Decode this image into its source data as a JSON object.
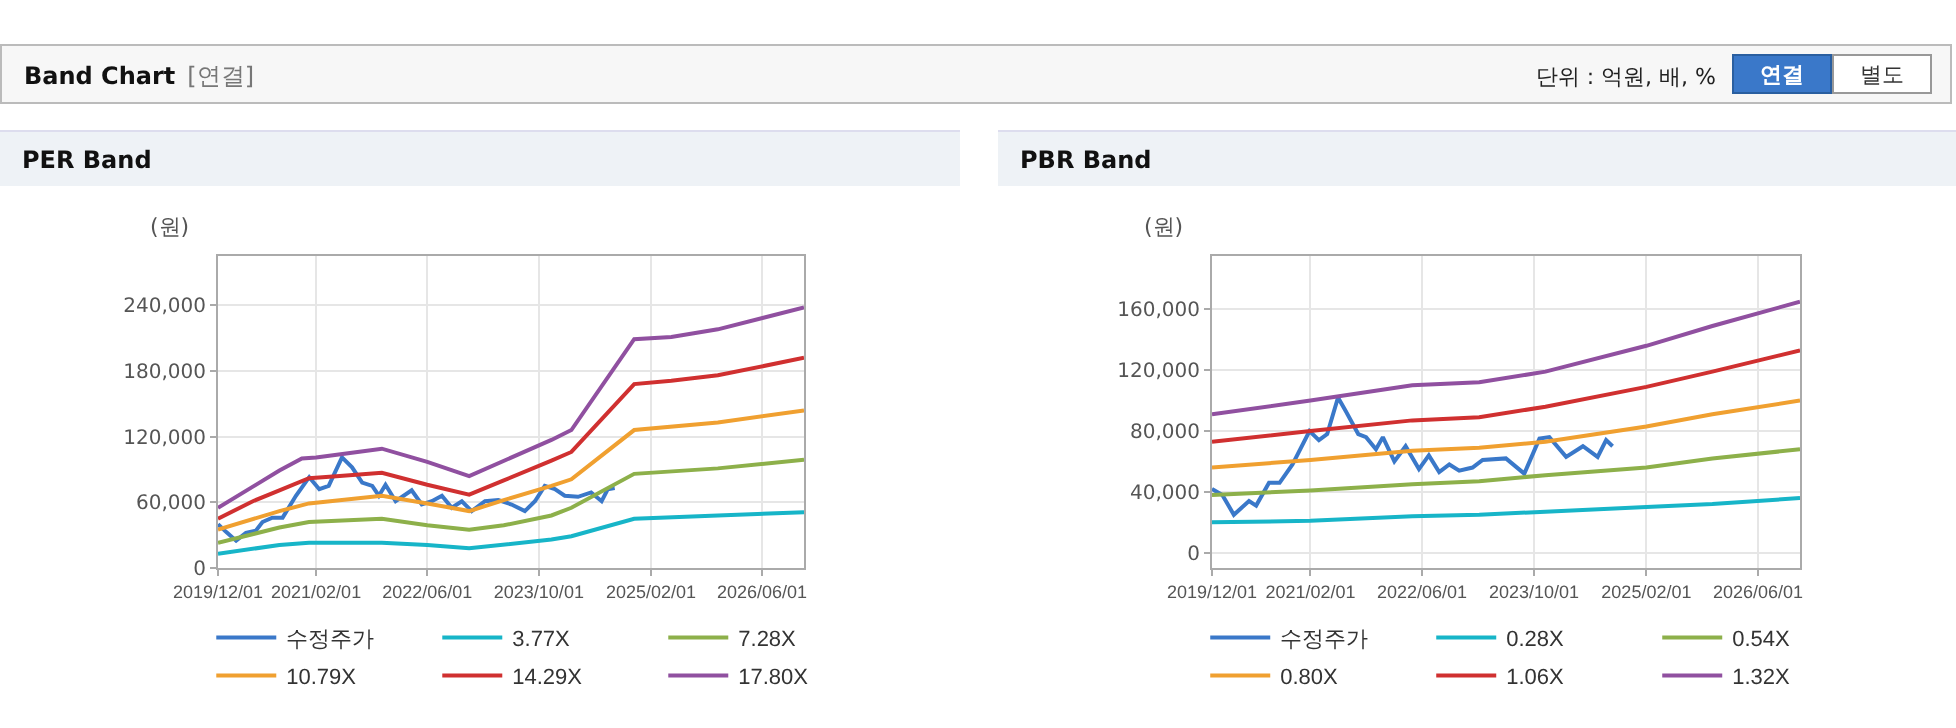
{
  "chart_data": [
    {
      "type": "line",
      "title": "PER Band",
      "ylabel": "(원)",
      "annotations": [
        "Band Chart",
        "[연결]",
        "단위 : 억원, 배, %",
        "연결",
        "별도"
      ],
      "xlim": [
        "2019-12-01",
        "2026-12-01"
      ],
      "xticks": [
        {
          "value": "2019-12-01",
          "label": "2019/12/01"
        },
        {
          "value": "2021-02-01",
          "label": "2021/02/01"
        },
        {
          "value": "2022-06-01",
          "label": "2022/06/01"
        },
        {
          "value": "2023-10-01",
          "label": "2023/10/01"
        },
        {
          "value": "2025-02-01",
          "label": "2025/02/01"
        },
        {
          "value": "2026-06-01",
          "label": "2026/06/01"
        }
      ],
      "ylim": [
        0,
        285000
      ],
      "yticks": [
        {
          "value": 0,
          "label": "0"
        },
        {
          "value": 60000,
          "label": "60,000"
        },
        {
          "value": 120000,
          "label": "120,000"
        },
        {
          "value": 180000,
          "label": "180,000"
        },
        {
          "value": 240000,
          "label": "240,000"
        }
      ],
      "grid": true,
      "legend": "bottom",
      "line_style": "solid",
      "marker": "none",
      "series": [
        {
          "name": "수정주가",
          "color": "#3a78c9",
          "x": [
            "2019-12-01",
            "2020-01-05",
            "2020-02-18",
            "2020-04-01",
            "2020-05-14",
            "2020-06-12",
            "2020-07-25",
            "2020-09-08",
            "2020-11-05",
            "2021-01-02",
            "2021-02-15",
            "2021-03-28",
            "2021-05-25",
            "2021-07-08",
            "2021-08-21",
            "2021-10-04",
            "2021-11-02",
            "2021-12-01",
            "2022-01-14",
            "2022-03-25",
            "2022-05-08",
            "2022-06-21",
            "2022-08-04",
            "2022-09-16",
            "2022-10-30",
            "2022-12-12",
            "2023-02-08",
            "2023-04-07",
            "2023-06-04",
            "2023-08-01",
            "2023-09-14",
            "2023-10-27",
            "2023-12-10",
            "2024-01-22",
            "2024-03-20",
            "2024-05-16",
            "2024-07-01",
            "2024-07-28",
            "2024-08-27"
          ],
          "values": [
            40000,
            33000,
            25000,
            32000,
            34000,
            42000,
            46000,
            46000,
            66000,
            83000,
            72000,
            75000,
            101000,
            92000,
            78000,
            75000,
            66000,
            76000,
            61000,
            71000,
            58000,
            61000,
            66000,
            55000,
            61000,
            52000,
            61000,
            62000,
            58000,
            52000,
            61000,
            75000,
            72000,
            66000,
            65000,
            69000,
            61000,
            72000,
            73000
          ]
        },
        {
          "name": "3.77X",
          "color": "#17b5c8",
          "x": [
            "2019-12-01",
            "2020-08-25",
            "2021-01-01",
            "2021-11-15",
            "2022-06-01",
            "2022-12-01",
            "2023-11-25",
            "2024-02-20",
            "2024-11-20",
            "2025-11-20",
            "2026-12-01"
          ],
          "values": [
            13000,
            21000,
            23000,
            23000,
            21000,
            18000,
            26000,
            29000,
            45000,
            48000,
            51000
          ]
        },
        {
          "name": "7.28X",
          "color": "#8db04a",
          "x": [
            "2019-12-01",
            "2020-08-25",
            "2021-01-01",
            "2021-11-15",
            "2022-06-01",
            "2022-12-01",
            "2023-05-01",
            "2023-11-25",
            "2024-02-20",
            "2024-11-20",
            "2025-11-20",
            "2026-12-01"
          ],
          "values": [
            23000,
            37000,
            42000,
            45000,
            39000,
            35000,
            39000,
            48000,
            55000,
            86000,
            91000,
            99000
          ]
        },
        {
          "name": "10.79X",
          "color": "#f0a030",
          "x": [
            "2019-12-01",
            "2020-08-25",
            "2021-01-01",
            "2021-11-15",
            "2022-06-01",
            "2022-12-01",
            "2023-05-01",
            "2023-11-25",
            "2024-02-20",
            "2024-11-20",
            "2025-11-20",
            "2026-12-01"
          ],
          "values": [
            35000,
            52000,
            59000,
            66000,
            59000,
            52000,
            62000,
            75000,
            81000,
            126000,
            133000,
            144000
          ]
        },
        {
          "name": "14.29X",
          "color": "#d03030",
          "x": [
            "2019-12-01",
            "2020-05-01",
            "2020-08-25",
            "2021-01-01",
            "2021-05-15",
            "2021-11-15",
            "2022-06-01",
            "2022-12-01",
            "2023-05-01",
            "2023-11-25",
            "2024-02-20",
            "2024-11-20",
            "2025-05-01",
            "2025-11-20",
            "2026-12-01"
          ],
          "values": [
            45000,
            61000,
            71000,
            82000,
            84000,
            87000,
            76000,
            67000,
            80000,
            98000,
            106000,
            168000,
            171000,
            176000,
            192000
          ]
        },
        {
          "name": "17.80X",
          "color": "#9050a0",
          "x": [
            "2019-12-01",
            "2020-08-25",
            "2020-12-01",
            "2021-02-01",
            "2021-08-01",
            "2021-11-15",
            "2022-06-01",
            "2022-12-01",
            "2023-11-25",
            "2024-02-20",
            "2024-11-20",
            "2025-05-01",
            "2025-11-20",
            "2026-12-01"
          ],
          "values": [
            55000,
            89000,
            100000,
            101000,
            106000,
            109000,
            97000,
            84000,
            117000,
            126000,
            209000,
            211000,
            218000,
            238000
          ]
        }
      ]
    },
    {
      "type": "line",
      "title": "PBR Band",
      "ylabel": "(원)",
      "xlim": [
        "2019-12-01",
        "2026-12-01"
      ],
      "xticks": [
        {
          "value": "2019-12-01",
          "label": "2019/12/01"
        },
        {
          "value": "2021-02-01",
          "label": "2021/02/01"
        },
        {
          "value": "2022-06-01",
          "label": "2022/06/01"
        },
        {
          "value": "2023-10-01",
          "label": "2023/10/01"
        },
        {
          "value": "2025-02-01",
          "label": "2025/02/01"
        },
        {
          "value": "2026-06-01",
          "label": "2026/06/01"
        }
      ],
      "ylim": [
        -10000,
        195000
      ],
      "yticks": [
        {
          "value": 0,
          "label": "0"
        },
        {
          "value": 40000,
          "label": "40,000"
        },
        {
          "value": 80000,
          "label": "80,000"
        },
        {
          "value": 120000,
          "label": "120,000"
        },
        {
          "value": 160000,
          "label": "160,000"
        }
      ],
      "grid": true,
      "legend": "bottom",
      "line_style": "solid",
      "marker": "none",
      "series": [
        {
          "name": "수정주가",
          "color": "#3a78c9",
          "x": [
            "2019-12-01",
            "2020-01-15",
            "2020-03-05",
            "2020-05-10",
            "2020-06-10",
            "2020-08-05",
            "2020-09-20",
            "2020-11-15",
            "2021-01-28",
            "2021-03-10",
            "2021-04-15",
            "2021-06-01",
            "2021-07-05",
            "2021-08-28",
            "2021-10-01",
            "2021-11-13",
            "2021-12-13",
            "2022-02-01",
            "2022-03-22",
            "2022-05-19",
            "2022-07-01",
            "2022-08-15",
            "2022-09-28",
            "2022-11-10",
            "2023-01-07",
            "2023-02-20",
            "2023-06-01",
            "2023-08-20",
            "2023-10-25",
            "2023-12-07",
            "2024-02-18",
            "2024-05-01",
            "2024-07-04",
            "2024-08-10",
            "2024-09-07"
          ],
          "values": [
            42000,
            38000,
            25000,
            34000,
            31000,
            46000,
            46000,
            58000,
            80000,
            74000,
            78000,
            102000,
            93000,
            78000,
            76000,
            68000,
            76000,
            60000,
            70000,
            55000,
            64000,
            53000,
            58000,
            54000,
            56000,
            61000,
            62000,
            52000,
            75000,
            76000,
            63000,
            70000,
            63000,
            74000,
            70000
          ]
        },
        {
          "name": "0.28X",
          "color": "#17b5c8",
          "x": [
            "2019-12-01",
            "2021-02-01",
            "2022-04-20",
            "2023-02-05",
            "2023-11-20",
            "2025-02-01",
            "2025-11-15",
            "2026-12-01"
          ],
          "values": [
            20000,
            21000,
            24000,
            25000,
            27000,
            30000,
            32000,
            36000
          ]
        },
        {
          "name": "0.54X",
          "color": "#8db04a",
          "x": [
            "2019-12-01",
            "2021-02-01",
            "2022-04-20",
            "2023-02-05",
            "2023-11-20",
            "2025-02-01",
            "2025-11-15",
            "2026-12-01"
          ],
          "values": [
            38000,
            41000,
            45000,
            47000,
            51000,
            56000,
            62000,
            68000
          ]
        },
        {
          "name": "0.80X",
          "color": "#f0a030",
          "x": [
            "2019-12-01",
            "2021-02-01",
            "2022-04-20",
            "2023-02-05",
            "2023-11-20",
            "2025-02-01",
            "2025-11-15",
            "2026-12-01"
          ],
          "values": [
            56000,
            61000,
            67000,
            69000,
            73000,
            83000,
            91000,
            100000
          ]
        },
        {
          "name": "1.06X",
          "color": "#d03030",
          "x": [
            "2019-12-01",
            "2021-02-01",
            "2022-04-20",
            "2023-02-05",
            "2023-11-20",
            "2025-02-01",
            "2025-11-15",
            "2026-12-01"
          ],
          "values": [
            73000,
            80000,
            87000,
            89000,
            96000,
            109000,
            119000,
            133000
          ]
        },
        {
          "name": "1.32X",
          "color": "#9050a0",
          "x": [
            "2019-12-01",
            "2021-02-01",
            "2022-04-20",
            "2023-02-05",
            "2023-11-20",
            "2025-02-01",
            "2025-11-15",
            "2026-12-01"
          ],
          "values": [
            91000,
            100000,
            110000,
            112000,
            119000,
            136000,
            149000,
            165000
          ]
        }
      ]
    }
  ]
}
